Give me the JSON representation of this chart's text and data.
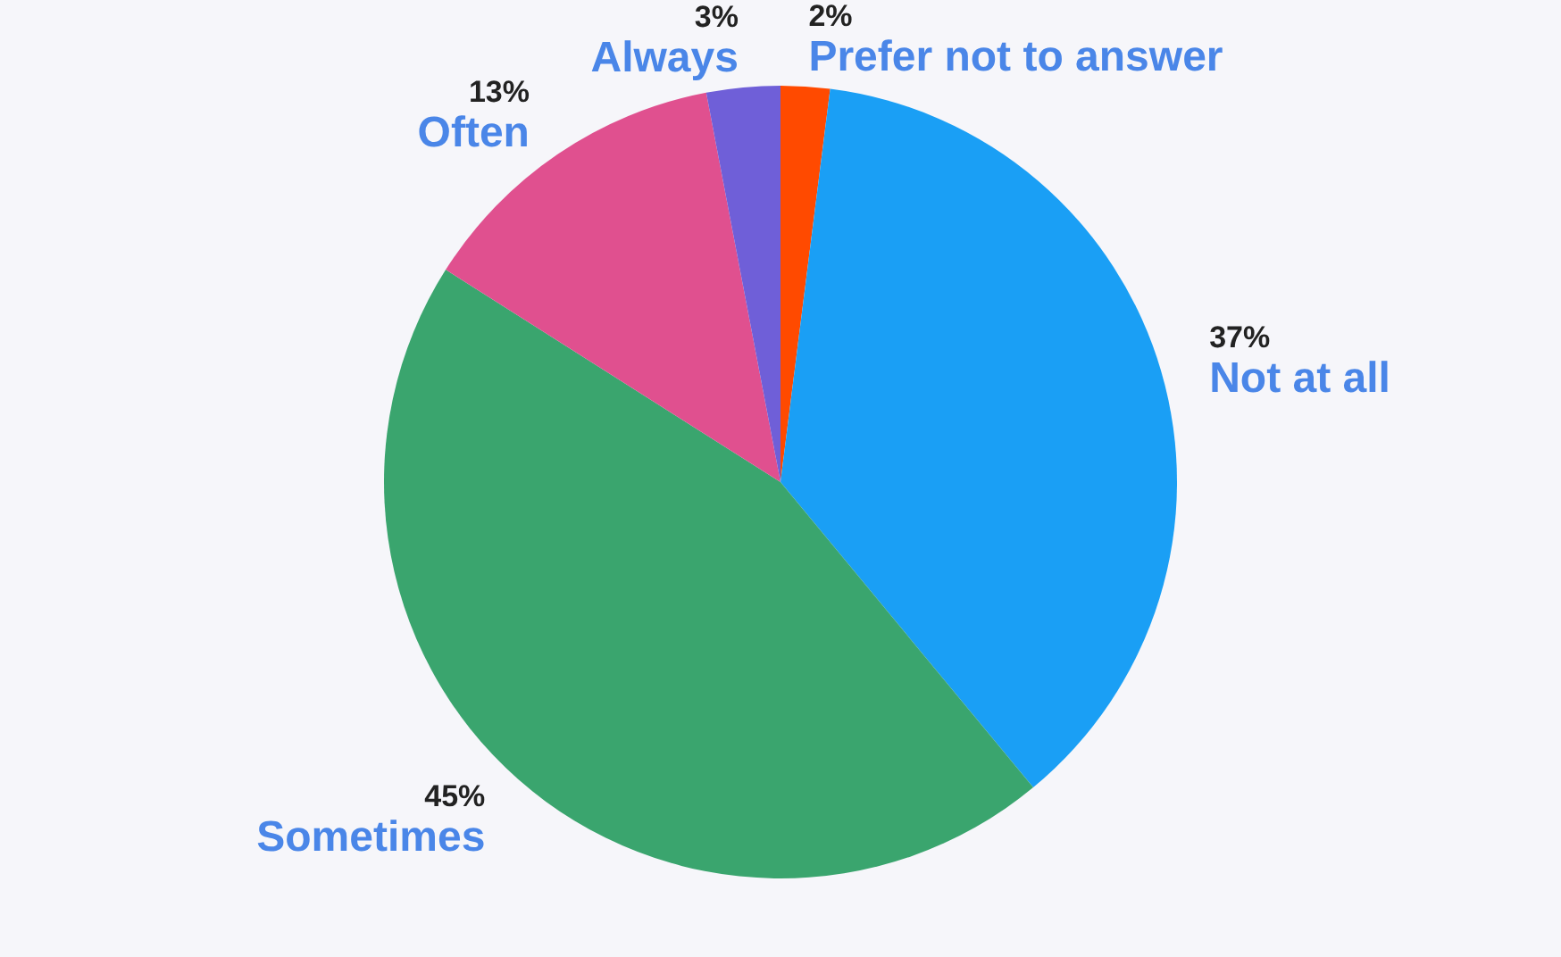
{
  "chart_data": {
    "type": "pie",
    "categories": [
      "Prefer not to answer",
      "Not at all",
      "Sometimes",
      "Often",
      "Always"
    ],
    "values": [
      2,
      37,
      45,
      13,
      3
    ],
    "colors": [
      "#ff4a00",
      "#1a9ff5",
      "#3aa56e",
      "#e0508f",
      "#6f5fd8"
    ],
    "value_labels": [
      "2%",
      "37%",
      "45%",
      "13%",
      "3%"
    ],
    "legend": false
  }
}
